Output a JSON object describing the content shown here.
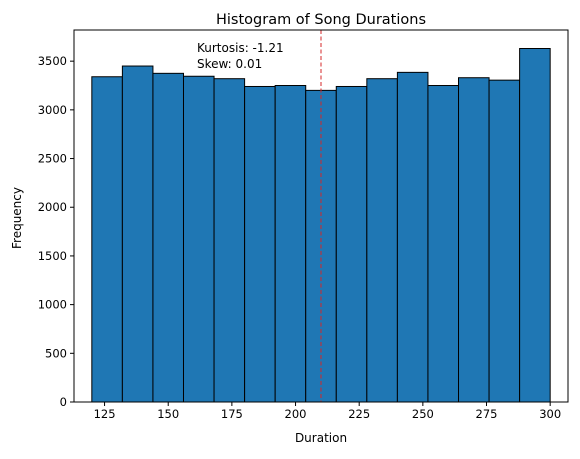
{
  "chart_data": {
    "type": "bar",
    "title": "Histogram of Song Durations",
    "xlabel": "Duration",
    "ylabel": "Frequency",
    "bins": [
      {
        "start": 120,
        "end": 132,
        "count": 3340
      },
      {
        "start": 132,
        "end": 144,
        "count": 3450
      },
      {
        "start": 144,
        "end": 156,
        "count": 3375
      },
      {
        "start": 156,
        "end": 168,
        "count": 3345
      },
      {
        "start": 168,
        "end": 180,
        "count": 3320
      },
      {
        "start": 180,
        "end": 192,
        "count": 3240
      },
      {
        "start": 192,
        "end": 204,
        "count": 3250
      },
      {
        "start": 204,
        "end": 216,
        "count": 3200
      },
      {
        "start": 216,
        "end": 228,
        "count": 3240
      },
      {
        "start": 228,
        "end": 240,
        "count": 3320
      },
      {
        "start": 240,
        "end": 252,
        "count": 3385
      },
      {
        "start": 252,
        "end": 264,
        "count": 3250
      },
      {
        "start": 264,
        "end": 276,
        "count": 3330
      },
      {
        "start": 276,
        "end": 288,
        "count": 3305
      },
      {
        "start": 288,
        "end": 300,
        "count": 3630
      }
    ],
    "xlim": [
      113,
      307
    ],
    "ylim": [
      0,
      3820
    ],
    "xticks": [
      125,
      150,
      175,
      200,
      225,
      250,
      275,
      300
    ],
    "yticks": [
      0,
      500,
      1000,
      1500,
      2000,
      2500,
      3000,
      3500
    ],
    "reference_line": {
      "x": 210,
      "style": "dashed",
      "color": "#d62728"
    },
    "annotations": [
      "Kurtosis: -1.21",
      "Skew: 0.01"
    ],
    "bar_color": "#1f77b4",
    "edge_color": "#000000",
    "grid": false
  }
}
